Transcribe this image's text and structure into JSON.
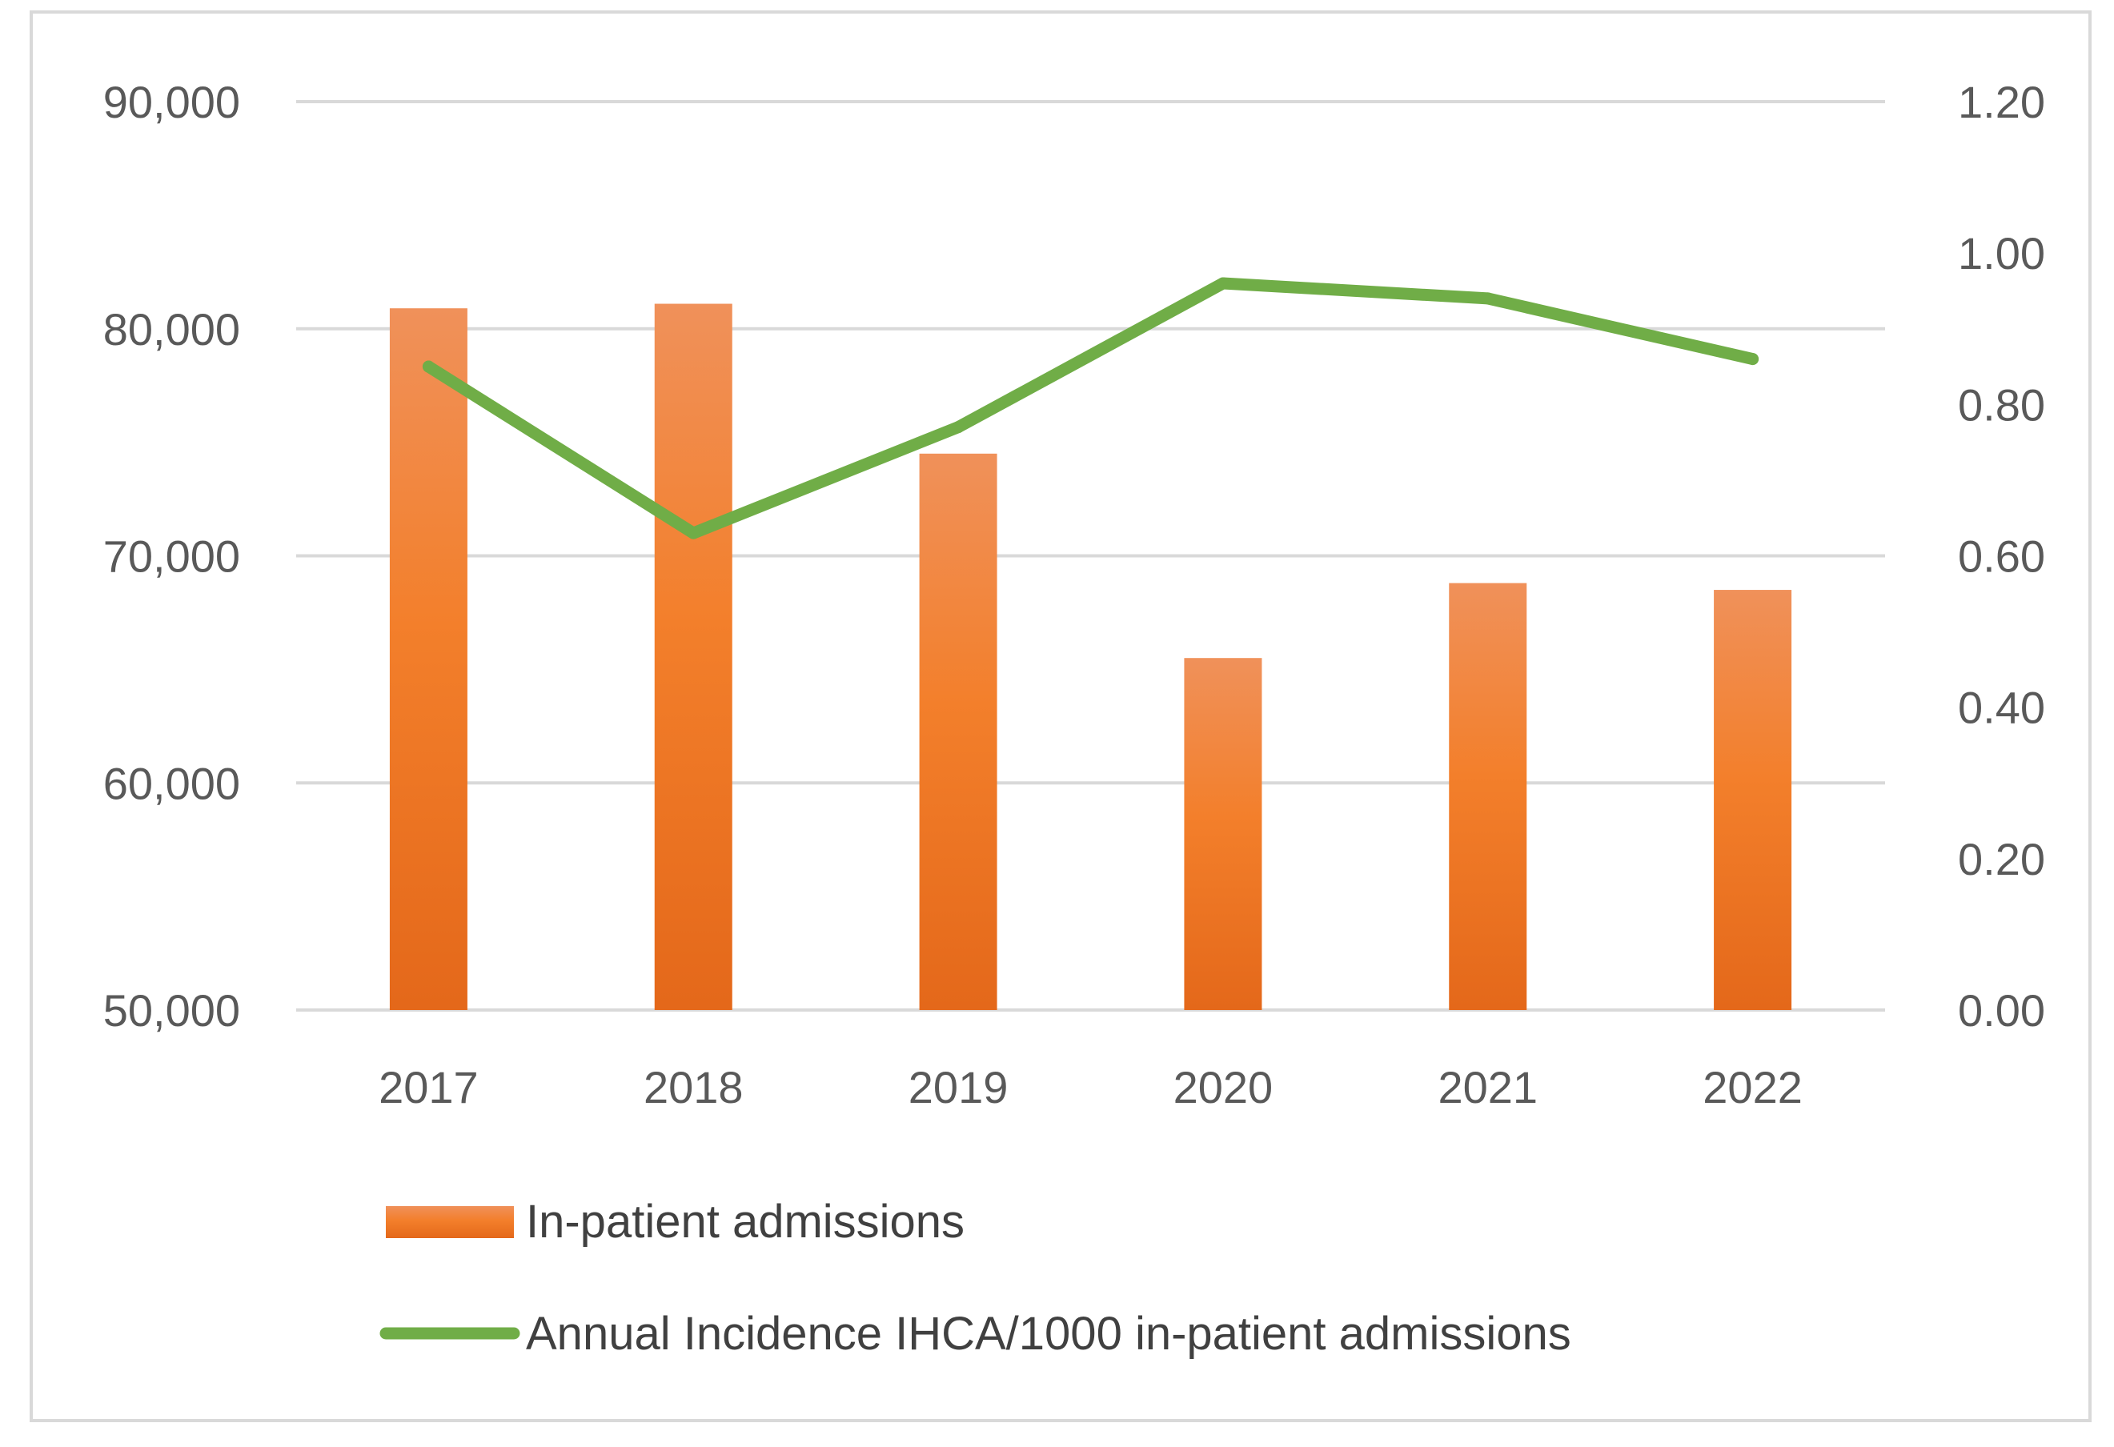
{
  "chart_data": {
    "type": "bar",
    "title": "",
    "xlabel": "",
    "ylabel": "",
    "y2label": "",
    "categories": [
      "2017",
      "2018",
      "2019",
      "2020",
      "2021",
      "2022"
    ],
    "series": [
      {
        "name": "In-patient admissions",
        "type": "bar",
        "axis": "left",
        "color": "#f07d27",
        "values": [
          80900,
          81100,
          74500,
          65500,
          68800,
          68500
        ]
      },
      {
        "name": "Annual Incidence IHCA/1000 in-patient admissions",
        "type": "line",
        "axis": "right",
        "color": "#70ad47",
        "values": [
          0.85,
          0.63,
          0.77,
          0.96,
          0.94,
          0.86
        ]
      }
    ],
    "ylim": [
      50000,
      90000
    ],
    "y2lim": [
      0,
      1.2
    ],
    "yticks": [
      "50,000",
      "60,000",
      "70,000",
      "80,000",
      "90,000"
    ],
    "y2ticks": [
      "0.00",
      "0.20",
      "0.40",
      "0.60",
      "0.80",
      "1.00",
      "1.20"
    ],
    "grid": true,
    "legend_position": "bottom"
  }
}
